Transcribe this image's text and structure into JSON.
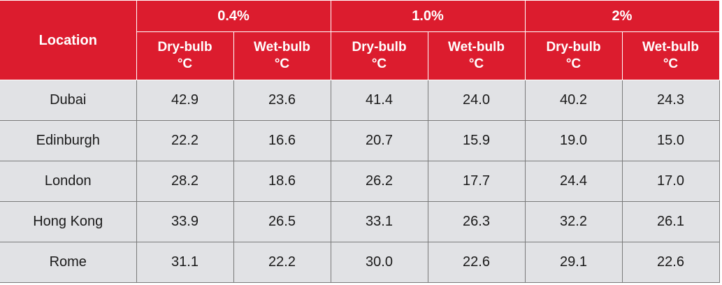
{
  "header": {
    "location_label": "Location",
    "groups": [
      "0.4%",
      "1.0%",
      "2%"
    ],
    "dry_bulb": "Dry-bulb",
    "wet_bulb": "Wet-bulb",
    "unit": "°C"
  },
  "rows": [
    {
      "location": "Dubai",
      "values": [
        "42.9",
        "23.6",
        "41.4",
        "24.0",
        "40.2",
        "24.3"
      ]
    },
    {
      "location": "Edinburgh",
      "values": [
        "22.2",
        "16.6",
        "20.7",
        "15.9",
        "19.0",
        "15.0"
      ]
    },
    {
      "location": "London",
      "values": [
        "28.2",
        "18.6",
        "26.2",
        "17.7",
        "24.4",
        "17.0"
      ]
    },
    {
      "location": "Hong Kong",
      "values": [
        "33.9",
        "26.5",
        "33.1",
        "26.3",
        "32.2",
        "26.1"
      ]
    },
    {
      "location": "Rome",
      "values": [
        "31.1",
        "22.2",
        "30.0",
        "22.6",
        "29.1",
        "22.6"
      ]
    }
  ]
}
